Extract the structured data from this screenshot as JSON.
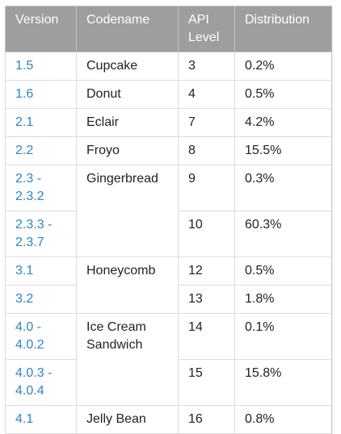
{
  "table": {
    "headers": [
      "Version",
      "Codename",
      "API Level",
      "Distribution"
    ],
    "api_header_line1": "API",
    "api_header_line2": "Level",
    "rows": [
      {
        "version": "1.5",
        "codename": "Cupcake",
        "api": "3",
        "distribution": "0.2%"
      },
      {
        "version": "1.6",
        "codename": "Donut",
        "api": "4",
        "distribution": "0.5%"
      },
      {
        "version": "2.1",
        "codename": "Eclair",
        "api": "7",
        "distribution": "4.2%"
      },
      {
        "version": "2.2",
        "codename": "Froyo",
        "api": "8",
        "distribution": "15.5%"
      },
      {
        "version_line1": "2.3 -",
        "version_line2": "2.3.2",
        "codename": "Gingerbread",
        "api": "9",
        "distribution": "0.3%"
      },
      {
        "version_line1": "2.3.3 -",
        "version_line2": "2.3.7",
        "api": "10",
        "distribution": "60.3%"
      },
      {
        "version": "3.1",
        "codename": "Honeycomb",
        "api": "12",
        "distribution": "0.5%"
      },
      {
        "version": "3.2",
        "api": "13",
        "distribution": "1.8%"
      },
      {
        "version_line1": "4.0 -",
        "version_line2": "4.0.2",
        "codename_line1": "Ice Cream",
        "codename_line2": "Sandwich",
        "api": "14",
        "distribution": "0.1%"
      },
      {
        "version_line1": "4.0.3 -",
        "version_line2": "4.0.4",
        "api": "15",
        "distribution": "15.8%"
      },
      {
        "version": "4.1",
        "codename": "Jelly Bean",
        "api": "16",
        "distribution": "0.8%"
      }
    ]
  },
  "colors": {
    "header_bg": "#9e9e9e",
    "header_text": "#ffffff",
    "version_link": "#2a86c7",
    "border": "#dcdcdc"
  }
}
